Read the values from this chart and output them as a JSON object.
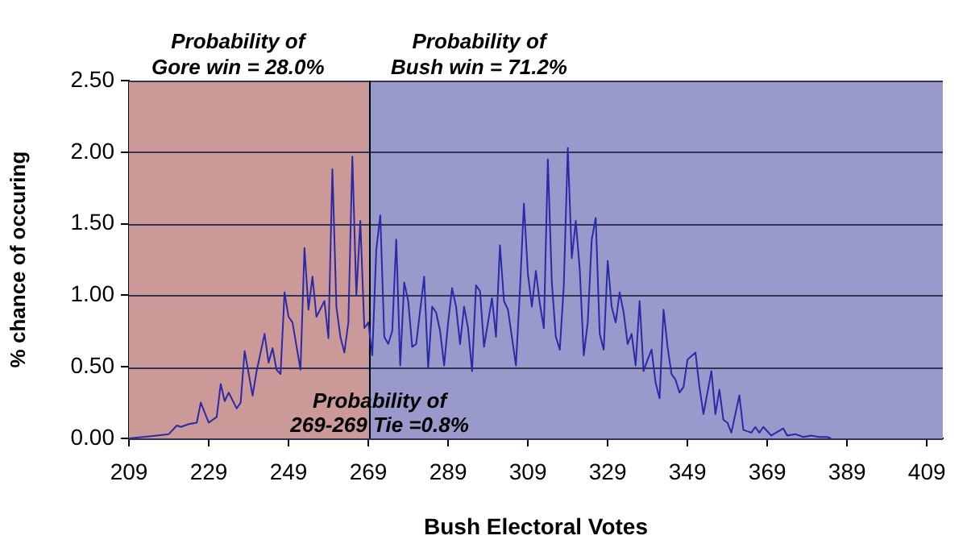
{
  "chart_data": {
    "type": "line",
    "xlabel": "Bush Electoral Votes",
    "ylabel": "% chance of occuring",
    "x": [
      209,
      216,
      219,
      221,
      222,
      224,
      226,
      227,
      229,
      231,
      232,
      233,
      234,
      236,
      237,
      238,
      240,
      241,
      243,
      244,
      245,
      246,
      247,
      248,
      249,
      250,
      252,
      253,
      254,
      255,
      256,
      258,
      259,
      260,
      261,
      262,
      263,
      264,
      265,
      266,
      267,
      268,
      269,
      270,
      271,
      272,
      273,
      274,
      275,
      276,
      277,
      278,
      279,
      280,
      281,
      283,
      284,
      285,
      286,
      287,
      288,
      289,
      290,
      291,
      292,
      293,
      294,
      295,
      296,
      297,
      298,
      299,
      300,
      301,
      302,
      303,
      304,
      306,
      307,
      308,
      309,
      310,
      311,
      312,
      313,
      314,
      315,
      316,
      317,
      318,
      319,
      320,
      321,
      322,
      323,
      324,
      325,
      326,
      327,
      328,
      329,
      330,
      331,
      332,
      333,
      334,
      335,
      336,
      337,
      338,
      339,
      340,
      341,
      342,
      343,
      344,
      345,
      346,
      347,
      348,
      349,
      351,
      352,
      353,
      355,
      356,
      357,
      358,
      359,
      360,
      362,
      363,
      365,
      366,
      367,
      368,
      370,
      373,
      374,
      376,
      378,
      380,
      382,
      384,
      385
    ],
    "series": [
      {
        "color": "#2a2aa8",
        "values": [
          0,
          0.02,
          0.03,
          0.09,
          0.08,
          0.1,
          0.11,
          0.25,
          0.11,
          0.15,
          0.38,
          0.26,
          0.32,
          0.21,
          0.25,
          0.61,
          0.3,
          0.47,
          0.73,
          0.53,
          0.63,
          0.48,
          0.45,
          1.02,
          0.85,
          0.81,
          0.48,
          1.33,
          0.9,
          1.13,
          0.85,
          0.96,
          0.7,
          1.88,
          0.92,
          0.71,
          0.6,
          0.81,
          1.97,
          1.0,
          1.52,
          0.77,
          0.81,
          0.58,
          1.32,
          1.56,
          0.71,
          0.66,
          0.75,
          1.39,
          0.51,
          1.09,
          0.96,
          0.64,
          0.66,
          1.13,
          0.49,
          0.92,
          0.88,
          0.75,
          0.51,
          0.81,
          1.05,
          0.92,
          0.66,
          0.92,
          0.77,
          0.47,
          1.07,
          1.03,
          0.64,
          0.81,
          0.98,
          0.71,
          1.35,
          0.96,
          0.9,
          0.51,
          1.03,
          1.64,
          1.15,
          0.92,
          1.17,
          0.94,
          0.77,
          1.95,
          1.09,
          0.71,
          0.62,
          1.07,
          2.03,
          1.26,
          1.52,
          1.18,
          0.58,
          0.81,
          1.39,
          1.54,
          0.73,
          0.62,
          1.24,
          0.92,
          0.81,
          1.02,
          0.88,
          0.66,
          0.73,
          0.51,
          0.96,
          0.47,
          0.55,
          0.62,
          0.39,
          0.28,
          0.9,
          0.64,
          0.45,
          0.41,
          0.32,
          0.36,
          0.55,
          0.6,
          0.36,
          0.17,
          0.47,
          0.17,
          0.34,
          0.13,
          0.11,
          0.04,
          0.3,
          0.06,
          0.04,
          0.08,
          0.04,
          0.08,
          0.02,
          0.07,
          0.02,
          0.03,
          0.01,
          0.02,
          0.01,
          0.01,
          0
        ]
      }
    ],
    "xlim": [
      209,
      413
    ],
    "xticks": [
      209,
      229,
      249,
      269,
      289,
      309,
      329,
      349,
      369,
      389,
      409
    ],
    "ylim": [
      0,
      2.5
    ],
    "yticks": [
      {
        "value": 0,
        "label": "0.00"
      },
      {
        "value": 0.5,
        "label": "0.50"
      },
      {
        "value": 1,
        "label": "1.00"
      },
      {
        "value": 1.5,
        "label": "1.50"
      },
      {
        "value": 2,
        "label": "2.00"
      },
      {
        "value": 2.5,
        "label": "2.50"
      }
    ],
    "grid": "y",
    "bands": [
      {
        "axis": "x",
        "from": 209,
        "to": 269,
        "label": "Probability of\nGore win = 28.0%",
        "color": "#cc9999"
      },
      {
        "axis": "x",
        "from": 269,
        "to": 413,
        "label": "Probability of\nBush win = 71.2%",
        "color": "#9999cc"
      }
    ],
    "ref_lines": [
      {
        "axis": "x",
        "value": 269,
        "label": "Probability of\n269-269 Tie =0.8%",
        "color": "#000000"
      }
    ]
  }
}
